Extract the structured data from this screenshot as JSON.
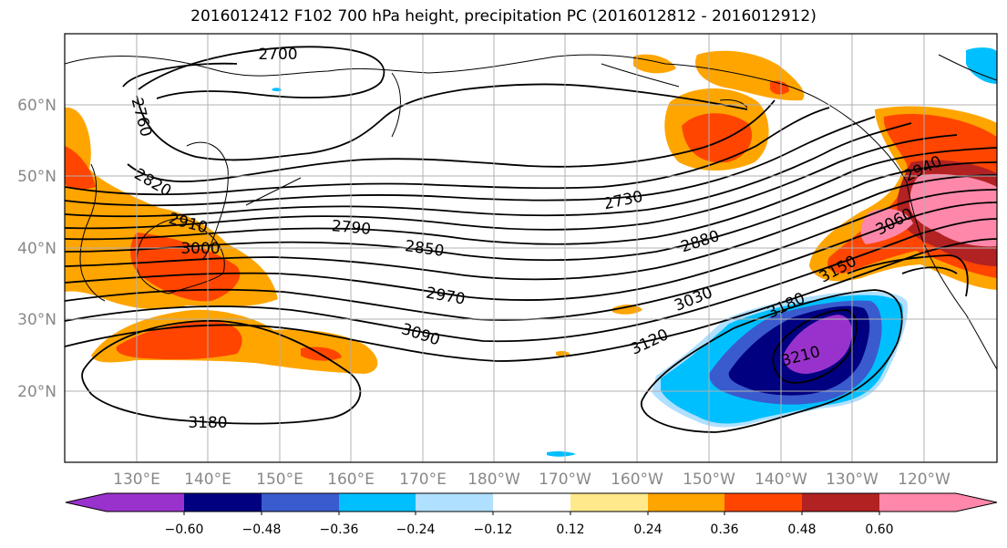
{
  "title": "2016012412 F102 700 hPa height, precipitation PC (2016012812 - 2016012912)",
  "lon_labels": [
    "130°E",
    "140°E",
    "150°E",
    "160°E",
    "170°E",
    "180°W",
    "170°W",
    "160°W",
    "150°W",
    "140°W",
    "130°W",
    "120°W"
  ],
  "lat_labels": [
    "60°N",
    "50°N",
    "40°N",
    "30°N",
    "20°N"
  ],
  "contour_labels": [
    "2700",
    "2760",
    "2820",
    "2910",
    "3000",
    "2790",
    "2850",
    "2730",
    "2880",
    "2970",
    "3030",
    "3090",
    "3120",
    "3180",
    "3210",
    "3150",
    "3060",
    "2940",
    "3180"
  ],
  "colorbar": {
    "ticks": [
      "−0.60",
      "−0.48",
      "−0.36",
      "−0.24",
      "−0.12",
      "0.12",
      "0.24",
      "0.36",
      "0.48",
      "0.60"
    ],
    "colors": [
      "#9932cc",
      "#000080",
      "#3a5bcd",
      "#00bfff",
      "#b0e0ff",
      "#ffffff",
      "#ffe98a",
      "#ffa500",
      "#ff4500",
      "#b22222",
      "#ff88aa",
      "#ff88aa"
    ]
  }
}
